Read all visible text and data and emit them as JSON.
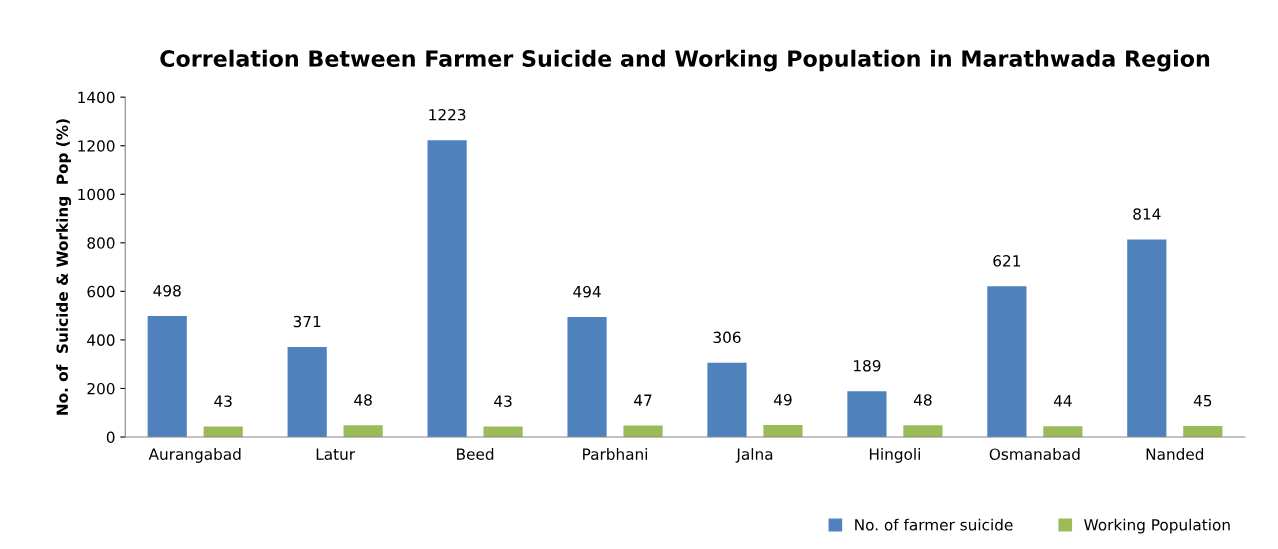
{
  "chart_data": {
    "type": "bar",
    "title": "Correlation Between Farmer Suicide and Working Population in Marathwada Region",
    "ylabel": "No. of  Suicide & Working  Pop (%)",
    "categories": [
      "Aurangabad",
      "Latur",
      "Beed",
      "Parbhani",
      "Jalna",
      "Hingoli",
      "Osmanabad",
      "Nanded"
    ],
    "series": [
      {
        "name": "No. of farmer suicide",
        "color": "#4f81bd",
        "values": [
          498,
          371,
          1223,
          494,
          306,
          189,
          621,
          814
        ]
      },
      {
        "name": "Working Population",
        "color": "#9bbb59",
        "values": [
          43,
          48,
          43,
          47,
          49,
          48,
          44,
          45
        ]
      }
    ],
    "ylim": [
      0,
      1400
    ],
    "yticks": [
      0,
      200,
      400,
      600,
      800,
      1000,
      1200,
      1400
    ],
    "data_labels": true,
    "grid": false,
    "legend": "bottom right"
  }
}
